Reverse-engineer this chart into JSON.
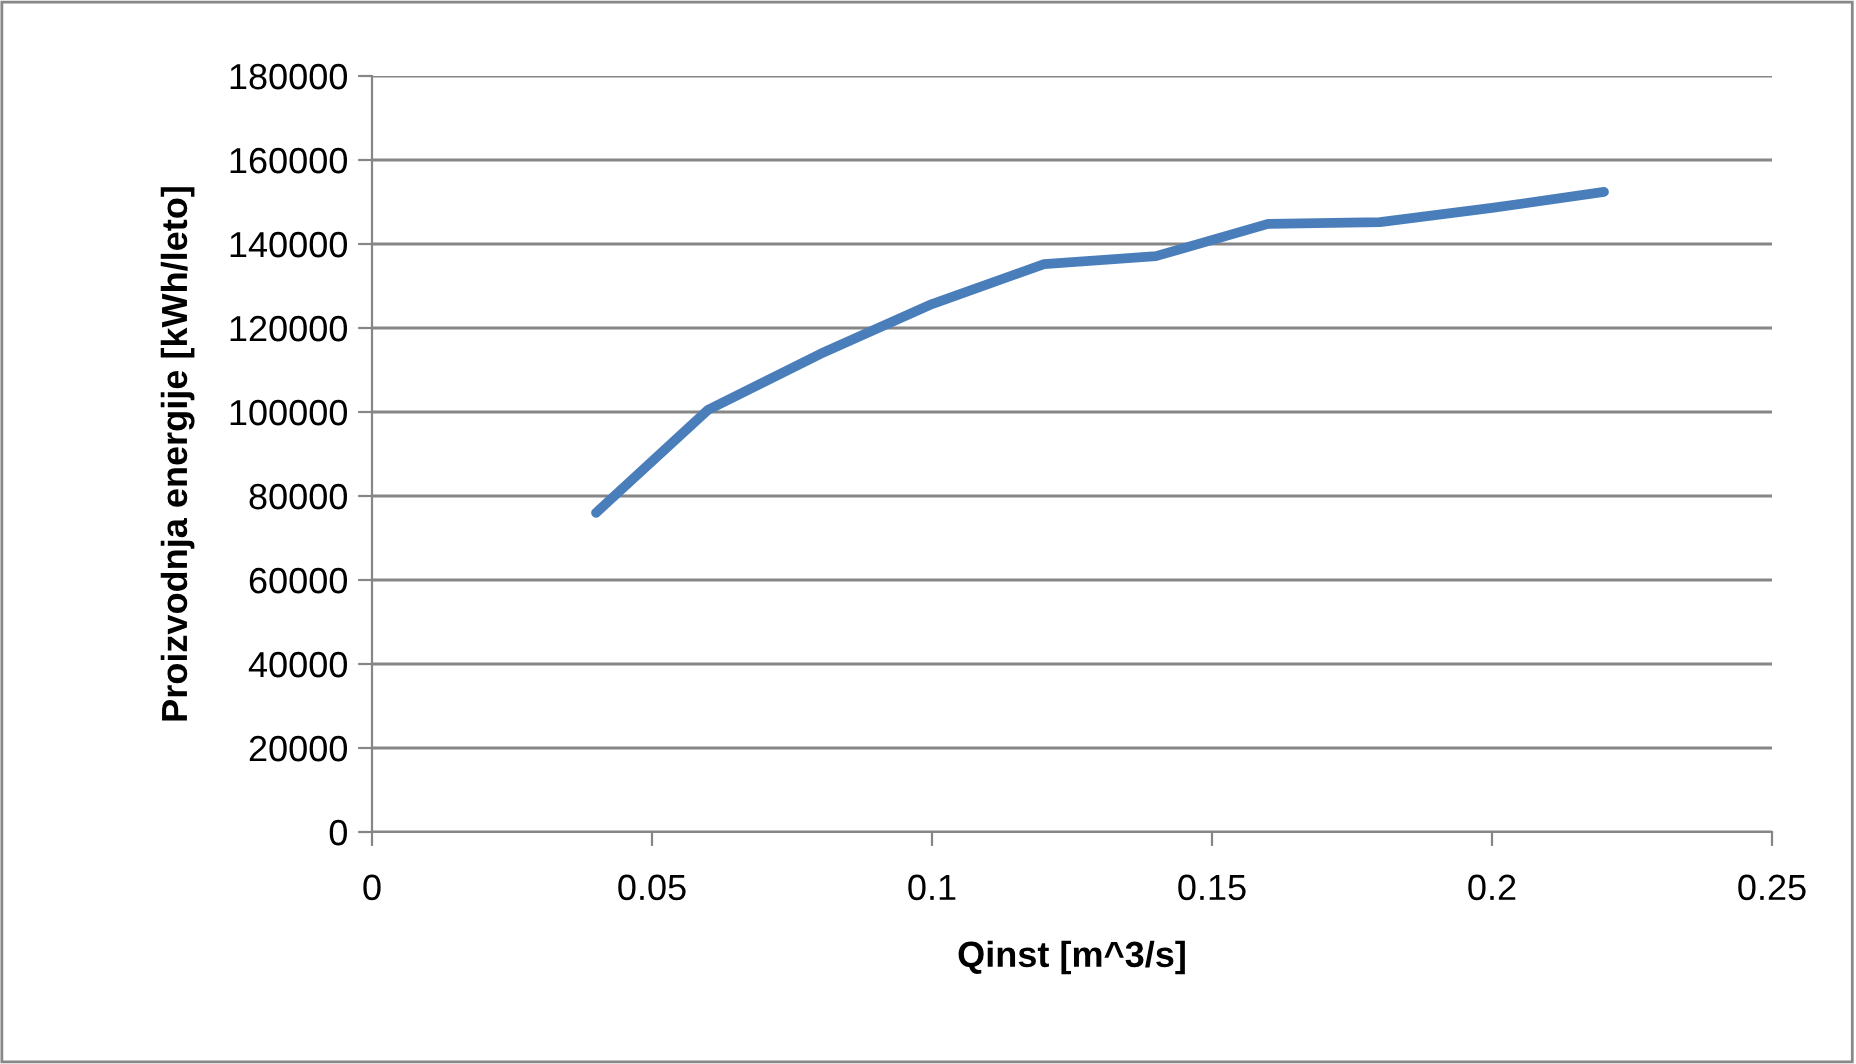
{
  "chart_data": {
    "type": "line",
    "xlabel": "Qinst [m^3/s]",
    "ylabel": "Proizvodnja energije [kWh/leto]",
    "x": [
      0.04,
      0.06,
      0.08,
      0.1,
      0.12,
      0.14,
      0.16,
      0.18,
      0.2,
      0.22
    ],
    "series": [
      {
        "color": "#4a7ebb",
        "values": [
          76000,
          100500,
          113800,
          125700,
          135200,
          137100,
          144800,
          145200,
          148600,
          152400
        ]
      }
    ],
    "xlim": [
      0,
      0.25
    ],
    "xticks": [
      0,
      0.05,
      0.1,
      0.15,
      0.2,
      0.25
    ],
    "ylim": [
      0,
      180000
    ],
    "yticks": [
      0,
      20000,
      40000,
      60000,
      80000,
      100000,
      120000,
      140000,
      160000,
      180000
    ],
    "grid": "y",
    "legend": false,
    "marker": "none",
    "line_style": "solid"
  }
}
